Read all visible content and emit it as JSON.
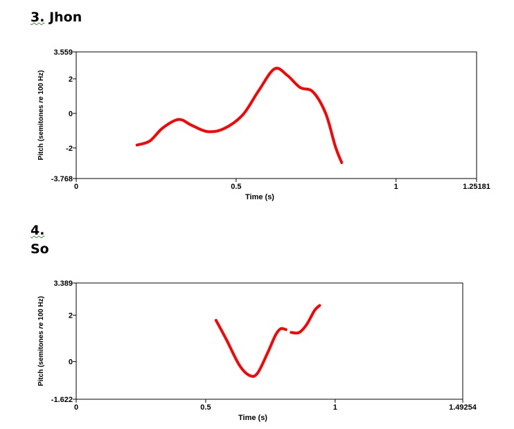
{
  "charts": [
    {
      "heading_number": "3.",
      "heading_word": "Jhon"
    },
    {
      "heading_number": "4.",
      "heading_word": "So"
    }
  ],
  "chart_data": [
    {
      "type": "line",
      "xlabel": "Time (s)",
      "ylabel_main": "Pitch (semitones ",
      "ylabel_italic": "re",
      "ylabel_tail": " 100 Hz)",
      "xlim": [
        0,
        1.25181
      ],
      "ylim": [
        -3.768,
        3.559
      ],
      "x_ticks": [
        0,
        0.5,
        1
      ],
      "x_tick_labels": [
        "0",
        "0.5",
        "1"
      ],
      "x_max_label": "1.25181",
      "y_ticks": [
        2,
        0,
        -2
      ],
      "y_tick_labels": [
        "2",
        "0",
        "-2"
      ],
      "y_max_label": "3.559",
      "y_min_label": "-3.768",
      "line_color": "#ff0000",
      "segments": [
        [
          [
            0.19,
            -1.83
          ],
          [
            0.23,
            -1.6
          ],
          [
            0.27,
            -0.85
          ],
          [
            0.32,
            -0.35
          ],
          [
            0.36,
            -0.68
          ],
          [
            0.41,
            -1.05
          ],
          [
            0.46,
            -0.9
          ],
          [
            0.52,
            -0.1
          ],
          [
            0.57,
            1.3
          ],
          [
            0.62,
            2.58
          ],
          [
            0.66,
            2.2
          ],
          [
            0.7,
            1.5
          ],
          [
            0.74,
            1.25
          ],
          [
            0.78,
            0.0
          ],
          [
            0.81,
            -1.9
          ],
          [
            0.83,
            -2.85
          ]
        ]
      ]
    },
    {
      "type": "line",
      "xlabel": "Time (s)",
      "ylabel_main": "Pitch (semitones ",
      "ylabel_italic": "re",
      "ylabel_tail": " 100 Hz)",
      "xlim": [
        0,
        1.49254
      ],
      "ylim": [
        -1.622,
        3.389
      ],
      "x_ticks": [
        0,
        0.5,
        1
      ],
      "x_tick_labels": [
        "0",
        "0.5",
        "1"
      ],
      "x_max_label": "1.49254",
      "y_ticks": [
        2,
        0
      ],
      "y_tick_labels": [
        "2",
        "0"
      ],
      "y_max_label": "3.389",
      "y_min_label": "-1.622",
      "line_color": "#ff0000",
      "segments": [
        [
          [
            0.54,
            1.78
          ],
          [
            0.58,
            0.95
          ],
          [
            0.63,
            -0.15
          ],
          [
            0.67,
            -0.6
          ],
          [
            0.7,
            -0.5
          ],
          [
            0.74,
            0.4
          ],
          [
            0.77,
            1.15
          ],
          [
            0.79,
            1.42
          ],
          [
            0.81,
            1.38
          ]
        ],
        [
          [
            0.83,
            1.26
          ],
          [
            0.86,
            1.25
          ],
          [
            0.89,
            1.6
          ],
          [
            0.92,
            2.2
          ],
          [
            0.94,
            2.42
          ]
        ]
      ]
    }
  ]
}
